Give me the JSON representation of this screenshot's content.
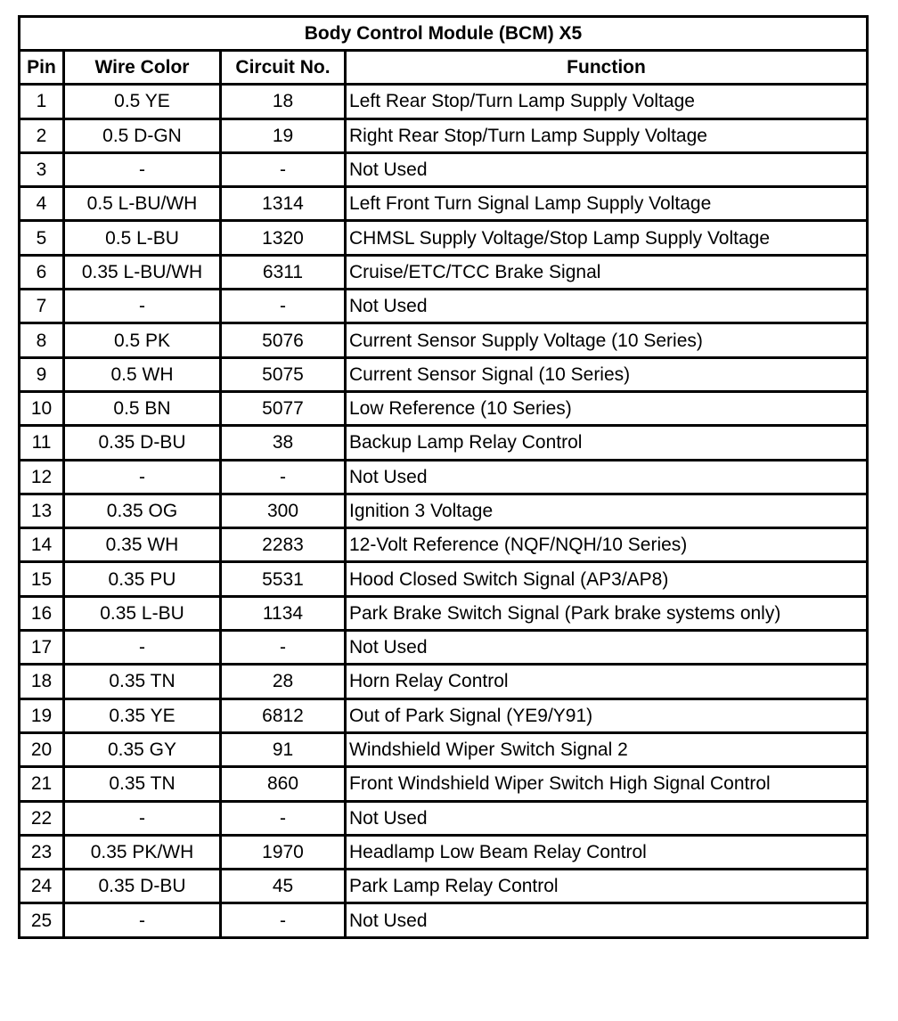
{
  "table": {
    "title": "Body Control Module (BCM) X5",
    "headers": [
      "Pin",
      "Wire Color",
      "Circuit No.",
      "Function"
    ],
    "rows": [
      [
        "1",
        "0.5 YE",
        "18",
        "Left Rear Stop/Turn Lamp Supply Voltage"
      ],
      [
        "2",
        "0.5 D-GN",
        "19",
        "Right Rear Stop/Turn Lamp Supply Voltage"
      ],
      [
        "3",
        "-",
        "-",
        "Not Used"
      ],
      [
        "4",
        "0.5 L-BU/WH",
        "1314",
        "Left Front Turn Signal Lamp Supply Voltage"
      ],
      [
        "5",
        "0.5 L-BU",
        "1320",
        "CHMSL Supply Voltage/Stop Lamp Supply Voltage"
      ],
      [
        "6",
        "0.35 L-BU/WH",
        "6311",
        "Cruise/ETC/TCC Brake Signal"
      ],
      [
        "7",
        "-",
        "-",
        "Not Used"
      ],
      [
        "8",
        "0.5 PK",
        "5076",
        "Current Sensor Supply Voltage (10 Series)"
      ],
      [
        "9",
        "0.5 WH",
        "5075",
        "Current Sensor Signal (10 Series)"
      ],
      [
        "10",
        "0.5 BN",
        "5077",
        "Low Reference (10 Series)"
      ],
      [
        "11",
        "0.35 D-BU",
        "38",
        "Backup Lamp Relay Control"
      ],
      [
        "12",
        "-",
        "-",
        "Not Used"
      ],
      [
        "13",
        "0.35 OG",
        "300",
        "Ignition 3 Voltage"
      ],
      [
        "14",
        "0.35 WH",
        "2283",
        "12-Volt Reference (NQF/NQH/10 Series)"
      ],
      [
        "15",
        "0.35 PU",
        "5531",
        "Hood Closed Switch Signal (AP3/AP8)"
      ],
      [
        "16",
        "0.35 L-BU",
        "1134",
        "Park Brake Switch Signal (Park brake systems only)"
      ],
      [
        "17",
        "-",
        "-",
        "Not Used"
      ],
      [
        "18",
        "0.35 TN",
        "28",
        "Horn Relay Control"
      ],
      [
        "19",
        "0.35 YE",
        "6812",
        "Out of Park Signal (YE9/Y91)"
      ],
      [
        "20",
        "0.35 GY",
        "91",
        "Windshield Wiper Switch Signal 2"
      ],
      [
        "21",
        "0.35 TN",
        "860",
        "Front Windshield Wiper Switch High Signal Control"
      ],
      [
        "22",
        "-",
        "-",
        "Not Used"
      ],
      [
        "23",
        "0.35 PK/WH",
        "1970",
        "Headlamp Low Beam Relay Control"
      ],
      [
        "24",
        "0.35 D-BU",
        "45",
        "Park Lamp Relay Control"
      ],
      [
        "25",
        "-",
        "-",
        "Not Used"
      ]
    ]
  }
}
